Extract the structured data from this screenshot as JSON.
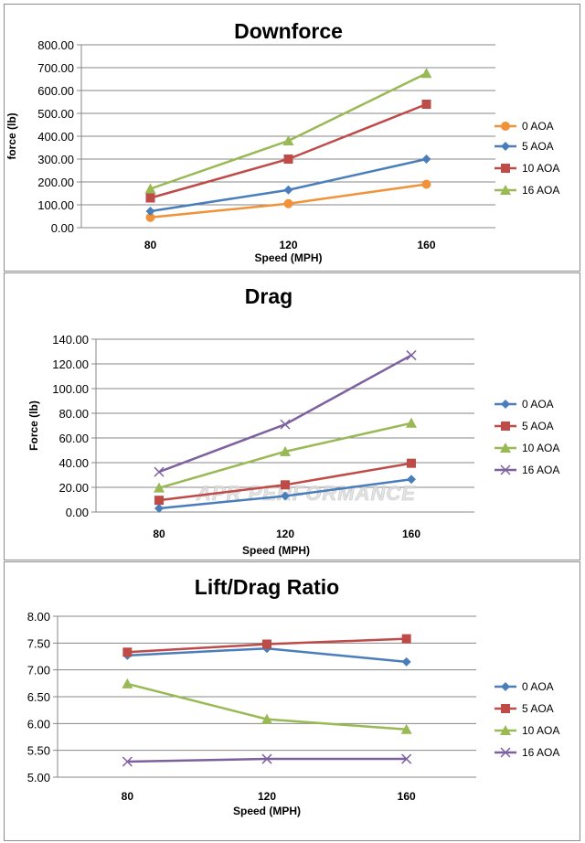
{
  "chart_data": [
    {
      "type": "line",
      "title": "Downforce",
      "xlabel": "Speed (MPH)",
      "ylabel": "force (lb)",
      "categories": [
        "80",
        "120",
        "160"
      ],
      "ylim": [
        0,
        800
      ],
      "yticks": [
        "0.00",
        "100.00",
        "200.00",
        "300.00",
        "400.00",
        "500.00",
        "600.00",
        "700.00",
        "800.00"
      ],
      "grid": true,
      "legend": "right",
      "series": [
        {
          "name": "0 AOA",
          "color": "#F0923A",
          "marker": "circle",
          "values": [
            45,
            105,
            190
          ]
        },
        {
          "name": "5 AOA",
          "color": "#4A7EBB",
          "marker": "diamond",
          "values": [
            72,
            165,
            300
          ]
        },
        {
          "name": "10 AOA",
          "color": "#BE4B48",
          "marker": "square",
          "values": [
            130,
            300,
            540
          ]
        },
        {
          "name": "16 AOA",
          "color": "#98B954",
          "marker": "triangle",
          "values": [
            170,
            380,
            675
          ]
        }
      ]
    },
    {
      "type": "line",
      "title": "Drag",
      "xlabel": "Speed (MPH)",
      "ylabel": "Force (lb)",
      "categories": [
        "80",
        "120",
        "160"
      ],
      "ylim": [
        0,
        140
      ],
      "yticks": [
        "0.00",
        "20.00",
        "40.00",
        "60.00",
        "80.00",
        "100.00",
        "120.00",
        "140.00"
      ],
      "grid": true,
      "legend": "right",
      "watermark": "APR PERFORMANCE",
      "series": [
        {
          "name": "0 AOA",
          "color": "#4A7EBB",
          "marker": "diamond",
          "values": [
            3,
            13,
            26.5
          ]
        },
        {
          "name": "5 AOA",
          "color": "#BE4B48",
          "marker": "square",
          "values": [
            9.5,
            22,
            39.5
          ]
        },
        {
          "name": "10 AOA",
          "color": "#98B954",
          "marker": "triangle",
          "values": [
            19.5,
            49,
            72
          ]
        },
        {
          "name": "16 AOA",
          "color": "#7D60A0",
          "marker": "x",
          "values": [
            32.5,
            71,
            127
          ]
        }
      ]
    },
    {
      "type": "line",
      "title": "Lift/Drag Ratio",
      "xlabel": "Speed (MPH)",
      "ylabel": "",
      "categories": [
        "80",
        "120",
        "160"
      ],
      "ylim": [
        5,
        8
      ],
      "yticks": [
        "5.00",
        "5.50",
        "6.00",
        "6.50",
        "7.00",
        "7.50",
        "8.00"
      ],
      "grid": true,
      "legend": "right",
      "series": [
        {
          "name": "0 AOA",
          "color": "#4A7EBB",
          "marker": "diamond",
          "values": [
            7.27,
            7.4,
            7.15
          ]
        },
        {
          "name": "5 AOA",
          "color": "#BE4B48",
          "marker": "square",
          "values": [
            7.33,
            7.48,
            7.58
          ]
        },
        {
          "name": "10 AOA",
          "color": "#98B954",
          "marker": "triangle",
          "values": [
            6.74,
            6.08,
            5.89
          ]
        },
        {
          "name": "16 AOA",
          "color": "#7D60A0",
          "marker": "x",
          "values": [
            5.29,
            5.34,
            5.34
          ]
        }
      ]
    }
  ]
}
